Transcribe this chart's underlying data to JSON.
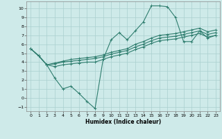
{
  "x_all": [
    0,
    1,
    2,
    3,
    4,
    5,
    6,
    7,
    8,
    9,
    10,
    11,
    12,
    13,
    14,
    15,
    16,
    17,
    18,
    19,
    20,
    21,
    22,
    23
  ],
  "line1_y": [
    5.5,
    4.7,
    3.7,
    2.2,
    1.0,
    1.3,
    0.5,
    -0.4,
    -1.2,
    4.3,
    6.5,
    7.3,
    6.5,
    7.5,
    8.5,
    10.3,
    10.3,
    10.2,
    9.0,
    6.3,
    6.3,
    7.5,
    6.7,
    7.0
  ],
  "line2_y": [
    5.5,
    4.7,
    3.7,
    3.5,
    3.7,
    3.8,
    3.9,
    4.0,
    4.0,
    4.3,
    4.6,
    4.8,
    5.0,
    5.4,
    5.7,
    6.1,
    6.4,
    6.5,
    6.6,
    6.8,
    7.0,
    7.2,
    6.8,
    7.0
  ],
  "line3_y": [
    5.5,
    4.7,
    3.7,
    3.8,
    4.0,
    4.1,
    4.2,
    4.3,
    4.4,
    4.6,
    4.9,
    5.1,
    5.3,
    5.7,
    6.0,
    6.4,
    6.7,
    6.8,
    6.9,
    7.1,
    7.3,
    7.5,
    7.1,
    7.3
  ],
  "line4_y": [
    5.5,
    4.7,
    3.7,
    3.9,
    4.1,
    4.3,
    4.4,
    4.5,
    4.6,
    4.8,
    5.1,
    5.3,
    5.5,
    6.0,
    6.3,
    6.7,
    7.0,
    7.1,
    7.2,
    7.4,
    7.6,
    7.8,
    7.4,
    7.6
  ],
  "color": "#2e7d6e",
  "bg_color": "#ceeae9",
  "grid_color": "#aacfcf",
  "xlabel": "Humidex (Indice chaleur)",
  "ylim": [
    -1.5,
    10.8
  ],
  "xlim": [
    -0.5,
    23.5
  ],
  "yticks": [
    -1,
    0,
    1,
    2,
    3,
    4,
    5,
    6,
    7,
    8,
    9,
    10
  ],
  "xticks": [
    0,
    1,
    2,
    3,
    4,
    5,
    6,
    7,
    8,
    9,
    10,
    11,
    12,
    13,
    14,
    15,
    16,
    17,
    18,
    19,
    20,
    21,
    22,
    23
  ]
}
